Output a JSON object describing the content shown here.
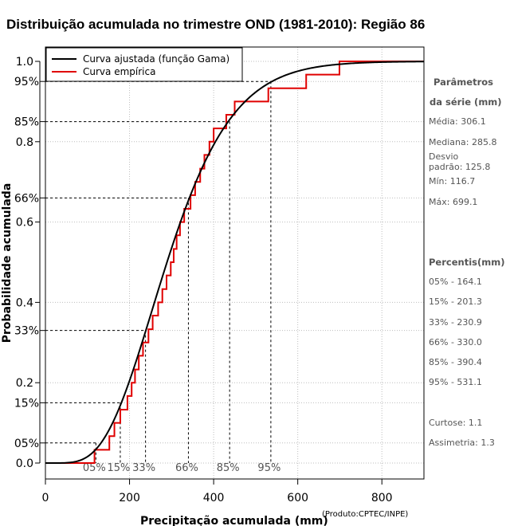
{
  "chart_data": {
    "type": "line",
    "title": "Distribuição acumulada no trimestre OND (1981-2010): Região 86",
    "xlabel": "Precipitação acumulada (mm)",
    "ylabel": "Probabilidade acumulada",
    "xlim": [
      0,
      900
    ],
    "ylim": [
      0,
      1
    ],
    "x_ticks": [
      0,
      200,
      400,
      600,
      800
    ],
    "x_tick_labels": [
      "0",
      "200",
      "400",
      "600",
      "800"
    ],
    "y_ticks": [
      0.0,
      0.2,
      0.4,
      0.6,
      0.8,
      1.0
    ],
    "y_tick_labels": [
      "0.0",
      "0.2",
      "0.4",
      "0.6",
      "0.8",
      "1.0"
    ],
    "percentile_ticks": [
      0.05,
      0.15,
      0.33,
      0.66,
      0.85,
      0.95
    ],
    "percentile_tick_labels": [
      "05%",
      "15%",
      "33%",
      "66%",
      "85%",
      "95%"
    ],
    "percentiles": [
      {
        "label": "05%",
        "prob": 0.05,
        "value": 120
      },
      {
        "label": "15%",
        "prob": 0.15,
        "value": 178
      },
      {
        "label": "33%",
        "prob": 0.33,
        "value": 238
      },
      {
        "label": "66%",
        "prob": 0.66,
        "value": 340
      },
      {
        "label": "85%",
        "prob": 0.85,
        "value": 438
      },
      {
        "label": "95%",
        "prob": 0.95,
        "value": 536
      }
    ],
    "gamma_fit": {
      "shape": 5.9,
      "scale": 51.9
    },
    "series": [
      {
        "name": "Curva ajustada (função Gama)",
        "color": "#000000",
        "kind": "fitted"
      },
      {
        "name": "Curva empírica",
        "color": "#e00000",
        "kind": "empirical_step",
        "x": [
          116.7,
          132,
          152,
          164,
          178,
          195,
          205,
          213,
          222,
          232,
          245,
          255,
          268,
          278,
          288,
          298,
          305,
          312,
          320,
          330,
          345,
          356,
          368,
          378,
          390,
          400,
          430,
          450,
          530,
          620,
          699.1,
          900
        ],
        "y": [
          0.033,
          0.033,
          0.067,
          0.1,
          0.133,
          0.167,
          0.2,
          0.233,
          0.267,
          0.3,
          0.333,
          0.367,
          0.4,
          0.433,
          0.467,
          0.5,
          0.533,
          0.567,
          0.6,
          0.633,
          0.667,
          0.7,
          0.733,
          0.767,
          0.8,
          0.833,
          0.867,
          0.9,
          0.933,
          0.967,
          1.0,
          1.0
        ]
      }
    ],
    "legend_position": "top-left",
    "grid": true
  },
  "sidebar": {
    "params_title_1": "Parâmetros",
    "params_title_2": "da série (mm)",
    "media": "Média: 306.1",
    "mediana": "Mediana: 285.8",
    "desvio_1": "Desvio",
    "desvio_2": "padrão: 125.8",
    "min": "Mín: 116.7",
    "max": "Máx: 699.1",
    "percentis_title": "Percentis(mm)",
    "p05": "05% - 164.1",
    "p15": "15% - 201.3",
    "p33": "33% - 230.9",
    "p66": "66% - 330.0",
    "p85": "85% - 390.4",
    "p95": "95% - 531.1",
    "curtose": "Curtose: 1.1",
    "assimetria": "Assimetria: 1.3"
  },
  "credit": "(Produto:CPTEC/INPE)",
  "colors": {
    "fitted": "#000000",
    "empirical": "#e00000",
    "grid": "#bdbdbd"
  }
}
